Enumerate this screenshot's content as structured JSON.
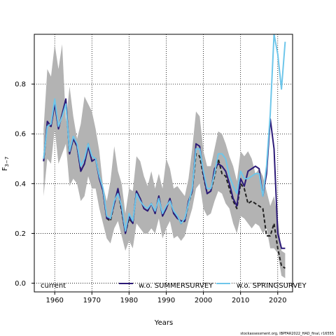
{
  "chart_data": {
    "type": "line",
    "xlabel": "Years",
    "ylabel": "F",
    "ylabel_sub": "3−7",
    "xlim": [
      1954.5,
      2024
    ],
    "ylim": [
      -0.035,
      1.0
    ],
    "x_ticks": [
      1960,
      1970,
      1980,
      1990,
      2000,
      2010,
      2020
    ],
    "x_tick_labels": [
      "1960",
      "1970",
      "1980",
      "1990",
      "2000",
      "2010",
      "2020"
    ],
    "y_ticks": [
      0.0,
      0.2,
      0.4,
      0.6,
      0.8
    ],
    "y_tick_labels": [
      "0.0",
      "0.2",
      "0.4",
      "0.6",
      "0.8"
    ],
    "grid": true,
    "legend_position": "bottom",
    "footer": "stockassessment.org, IBPFAR2022_HAD_final, r16555",
    "band": {
      "name": "current",
      "x": [
        1957,
        1958,
        1959,
        1960,
        1961,
        1962,
        1963,
        1964,
        1965,
        1966,
        1967,
        1968,
        1969,
        1970,
        1971,
        1972,
        1973,
        1974,
        1975,
        1976,
        1977,
        1978,
        1979,
        1980,
        1981,
        1982,
        1983,
        1984,
        1985,
        1986,
        1987,
        1988,
        1989,
        1990,
        1991,
        1992,
        1993,
        1994,
        1995,
        1996,
        1997,
        1998,
        1999,
        2000,
        2001,
        2002,
        2003,
        2004,
        2005,
        2006,
        2007,
        2008,
        2009,
        2010,
        2011,
        2012,
        2013,
        2014,
        2015,
        2016,
        2017,
        2018,
        2019,
        2020,
        2021,
        2022
      ],
      "lower": [
        0.35,
        0.5,
        0.48,
        0.62,
        0.48,
        0.52,
        0.56,
        0.39,
        0.42,
        0.4,
        0.33,
        0.35,
        0.43,
        0.38,
        0.38,
        0.3,
        0.24,
        0.18,
        0.16,
        0.22,
        0.25,
        0.19,
        0.13,
        0.17,
        0.14,
        0.24,
        0.22,
        0.2,
        0.2,
        0.22,
        0.2,
        0.26,
        0.18,
        0.22,
        0.25,
        0.18,
        0.19,
        0.17,
        0.19,
        0.25,
        0.3,
        0.38,
        0.4,
        0.3,
        0.27,
        0.28,
        0.33,
        0.37,
        0.36,
        0.32,
        0.3,
        0.24,
        0.2,
        0.27,
        0.26,
        0.24,
        0.22,
        0.24,
        0.23,
        0.2,
        0.22,
        0.14,
        0.14,
        0.12,
        0.03,
        0.02
      ],
      "upper": [
        0.62,
        0.86,
        0.83,
        0.96,
        0.86,
        0.96,
        0.65,
        0.79,
        0.67,
        0.58,
        0.64,
        0.75,
        0.72,
        0.69,
        0.62,
        0.53,
        0.39,
        0.33,
        0.41,
        0.55,
        0.45,
        0.4,
        0.28,
        0.38,
        0.37,
        0.51,
        0.49,
        0.43,
        0.39,
        0.45,
        0.38,
        0.44,
        0.38,
        0.5,
        0.46,
        0.38,
        0.39,
        0.37,
        0.35,
        0.42,
        0.54,
        0.69,
        0.67,
        0.53,
        0.47,
        0.47,
        0.54,
        0.61,
        0.6,
        0.56,
        0.51,
        0.47,
        0.41,
        0.53,
        0.51,
        0.53,
        0.5,
        0.44,
        0.46,
        0.43,
        0.37,
        0.31,
        0.35,
        0.26,
        0.13,
        0.12
      ]
    },
    "series": [
      {
        "name": "current",
        "color": "#222222",
        "dash": "5,3",
        "x": [
          1957,
          1958,
          1959,
          1960,
          1961,
          1962,
          1963,
          1964,
          1965,
          1966,
          1967,
          1968,
          1969,
          1970,
          1971,
          1972,
          1973,
          1974,
          1975,
          1976,
          1977,
          1978,
          1979,
          1980,
          1981,
          1982,
          1983,
          1984,
          1985,
          1986,
          1987,
          1988,
          1989,
          1990,
          1991,
          1992,
          1993,
          1994,
          1995,
          1996,
          1997,
          1998,
          1999,
          2000,
          2001,
          2002,
          2003,
          2004,
          2005,
          2006,
          2007,
          2008,
          2009,
          2010,
          2011,
          2012,
          2013,
          2014,
          2015,
          2016,
          2017,
          2018,
          2019,
          2020,
          2021,
          2022
        ],
        "y": [
          0.49,
          0.64,
          0.63,
          0.73,
          0.62,
          0.68,
          0.73,
          0.52,
          0.58,
          0.55,
          0.45,
          0.48,
          0.56,
          0.49,
          0.5,
          0.43,
          0.37,
          0.26,
          0.25,
          0.32,
          0.37,
          0.29,
          0.2,
          0.26,
          0.24,
          0.37,
          0.34,
          0.3,
          0.29,
          0.32,
          0.28,
          0.35,
          0.27,
          0.3,
          0.34,
          0.28,
          0.27,
          0.24,
          0.25,
          0.32,
          0.37,
          0.52,
          0.51,
          0.43,
          0.36,
          0.37,
          0.43,
          0.5,
          0.44,
          0.43,
          0.38,
          0.33,
          0.3,
          0.4,
          0.38,
          0.32,
          0.33,
          0.32,
          0.31,
          0.3,
          0.19,
          0.19,
          0.24,
          0.14,
          0.07,
          0.06
        ]
      },
      {
        "name": "w.o. SUMMERSURVEY",
        "color": "#2c1a78",
        "dash": "",
        "x": [
          1957,
          1958,
          1959,
          1960,
          1961,
          1962,
          1963,
          1964,
          1965,
          1966,
          1967,
          1968,
          1969,
          1970,
          1971,
          1972,
          1973,
          1974,
          1975,
          1976,
          1977,
          1978,
          1979,
          1980,
          1981,
          1982,
          1983,
          1984,
          1985,
          1986,
          1987,
          1988,
          1989,
          1990,
          1991,
          1992,
          1993,
          1994,
          1995,
          1996,
          1997,
          1998,
          1999,
          2000,
          2001,
          2002,
          2003,
          2004,
          2005,
          2006,
          2007,
          2008,
          2009,
          2010,
          2011,
          2012,
          2013,
          2014,
          2015,
          2016,
          2017,
          2018,
          2019,
          2020,
          2021,
          2022
        ],
        "y": [
          0.49,
          0.65,
          0.63,
          0.72,
          0.62,
          0.68,
          0.74,
          0.52,
          0.58,
          0.55,
          0.45,
          0.48,
          0.55,
          0.49,
          0.5,
          0.42,
          0.37,
          0.26,
          0.26,
          0.32,
          0.38,
          0.3,
          0.2,
          0.27,
          0.24,
          0.37,
          0.34,
          0.3,
          0.29,
          0.32,
          0.28,
          0.35,
          0.27,
          0.3,
          0.34,
          0.28,
          0.26,
          0.25,
          0.25,
          0.33,
          0.37,
          0.56,
          0.55,
          0.44,
          0.36,
          0.37,
          0.46,
          0.48,
          0.47,
          0.45,
          0.4,
          0.34,
          0.31,
          0.42,
          0.39,
          0.45,
          0.46,
          0.47,
          0.46,
          0.35,
          0.44,
          0.66,
          0.54,
          0.2,
          0.14,
          0.14
        ]
      },
      {
        "name": "w.o. SPRINGSURVEY",
        "color": "#6ec6ea",
        "dash": "",
        "x": [
          1957,
          1958,
          1959,
          1960,
          1961,
          1962,
          1963,
          1964,
          1965,
          1966,
          1967,
          1968,
          1969,
          1970,
          1971,
          1972,
          1973,
          1974,
          1975,
          1976,
          1977,
          1978,
          1979,
          1980,
          1981,
          1982,
          1983,
          1984,
          1985,
          1986,
          1987,
          1988,
          1989,
          1990,
          1991,
          1992,
          1993,
          1994,
          1995,
          1996,
          1997,
          1998,
          1999,
          2000,
          2001,
          2002,
          2003,
          2004,
          2005,
          2006,
          2007,
          2008,
          2009,
          2010,
          2011,
          2012,
          2013,
          2014,
          2015,
          2016,
          2017,
          2018,
          2019,
          2020,
          2021,
          2022
        ],
        "y": [
          0.5,
          0.63,
          0.64,
          0.74,
          0.63,
          0.67,
          0.72,
          0.53,
          0.59,
          0.56,
          0.47,
          0.5,
          0.56,
          0.51,
          0.5,
          0.43,
          0.38,
          0.27,
          0.26,
          0.33,
          0.36,
          0.31,
          0.21,
          0.28,
          0.25,
          0.36,
          0.33,
          0.31,
          0.3,
          0.32,
          0.29,
          0.34,
          0.28,
          0.31,
          0.33,
          0.29,
          0.27,
          0.24,
          0.26,
          0.32,
          0.38,
          0.54,
          0.54,
          0.45,
          0.38,
          0.38,
          0.44,
          0.52,
          0.52,
          0.5,
          0.43,
          0.39,
          0.36,
          0.45,
          0.42,
          0.42,
          0.43,
          0.44,
          0.44,
          0.35,
          0.47,
          0.68,
          1.0,
          0.92,
          0.78,
          0.97
        ]
      }
    ]
  }
}
